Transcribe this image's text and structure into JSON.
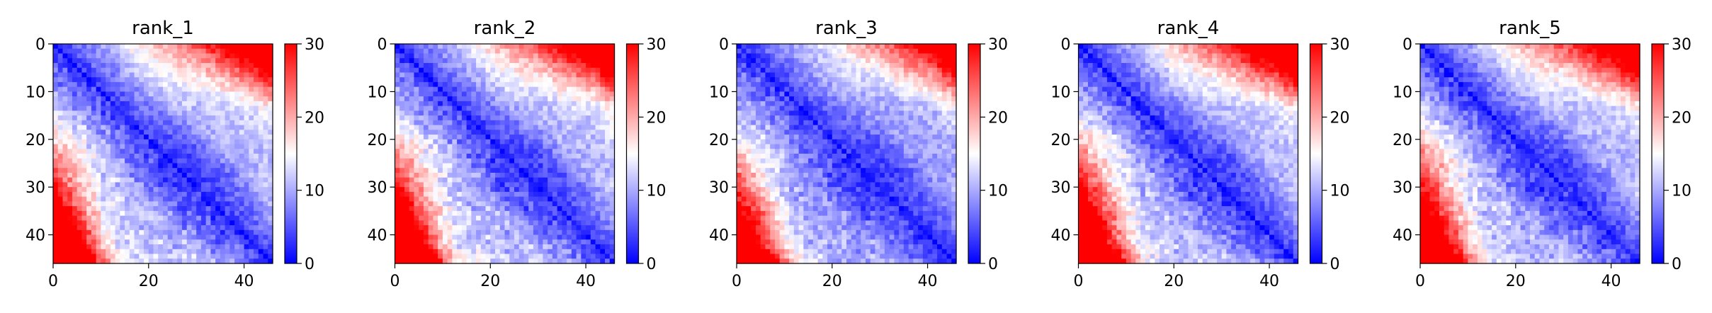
{
  "chart_data": [
    {
      "type": "heatmap",
      "title": "rank_1",
      "xlabel": "",
      "ylabel": "",
      "matrix_size": 46,
      "x_ticks": [
        0,
        20,
        40
      ],
      "y_ticks": [
        0,
        10,
        20,
        30,
        40
      ],
      "colorbar": {
        "min": 0,
        "max": 30,
        "ticks": [
          0,
          10,
          20,
          30
        ],
        "colormap": "bwr"
      },
      "pattern": {
        "base": 14,
        "near_slope": 0.9,
        "far_amp": 17,
        "far_start": 13,
        "corner_amp": 12,
        "edge_amp": 8,
        "seed": 11
      }
    },
    {
      "type": "heatmap",
      "title": "rank_2",
      "xlabel": "",
      "ylabel": "",
      "matrix_size": 46,
      "x_ticks": [
        0,
        20,
        40
      ],
      "y_ticks": [
        0,
        10,
        20,
        30,
        40
      ],
      "colorbar": {
        "min": 0,
        "max": 30,
        "ticks": [
          0,
          10,
          20,
          30
        ],
        "colormap": "bwr"
      },
      "pattern": {
        "base": 14,
        "near_slope": 0.9,
        "far_amp": 18,
        "far_start": 13,
        "corner_amp": 14,
        "edge_amp": 9,
        "seed": 23
      }
    },
    {
      "type": "heatmap",
      "title": "rank_3",
      "xlabel": "",
      "ylabel": "",
      "matrix_size": 46,
      "x_ticks": [
        0,
        20,
        40
      ],
      "y_ticks": [
        0,
        10,
        20,
        30,
        40
      ],
      "colorbar": {
        "min": 0,
        "max": 30,
        "ticks": [
          0,
          10,
          20,
          30
        ],
        "colormap": "bwr"
      },
      "pattern": {
        "base": 13,
        "near_slope": 0.85,
        "far_amp": 16,
        "far_start": 15,
        "corner_amp": 11,
        "edge_amp": 9,
        "seed": 37
      }
    },
    {
      "type": "heatmap",
      "title": "rank_4",
      "xlabel": "",
      "ylabel": "",
      "matrix_size": 46,
      "x_ticks": [
        0,
        20,
        40
      ],
      "y_ticks": [
        0,
        10,
        20,
        30,
        40
      ],
      "colorbar": {
        "min": 0,
        "max": 30,
        "ticks": [
          0,
          10,
          20,
          30
        ],
        "colormap": "bwr"
      },
      "pattern": {
        "base": 14,
        "near_slope": 0.9,
        "far_amp": 19,
        "far_start": 13,
        "corner_amp": 15,
        "edge_amp": 10,
        "seed": 53
      }
    },
    {
      "type": "heatmap",
      "title": "rank_5",
      "xlabel": "",
      "ylabel": "",
      "matrix_size": 46,
      "x_ticks": [
        0,
        20,
        40
      ],
      "y_ticks": [
        0,
        10,
        20,
        30,
        40
      ],
      "colorbar": {
        "min": 0,
        "max": 30,
        "ticks": [
          0,
          10,
          20,
          30
        ],
        "colormap": "bwr"
      },
      "pattern": {
        "base": 14,
        "near_slope": 0.88,
        "far_amp": 17,
        "far_start": 12,
        "corner_amp": 12,
        "edge_amp": 8,
        "seed": 71
      }
    }
  ]
}
